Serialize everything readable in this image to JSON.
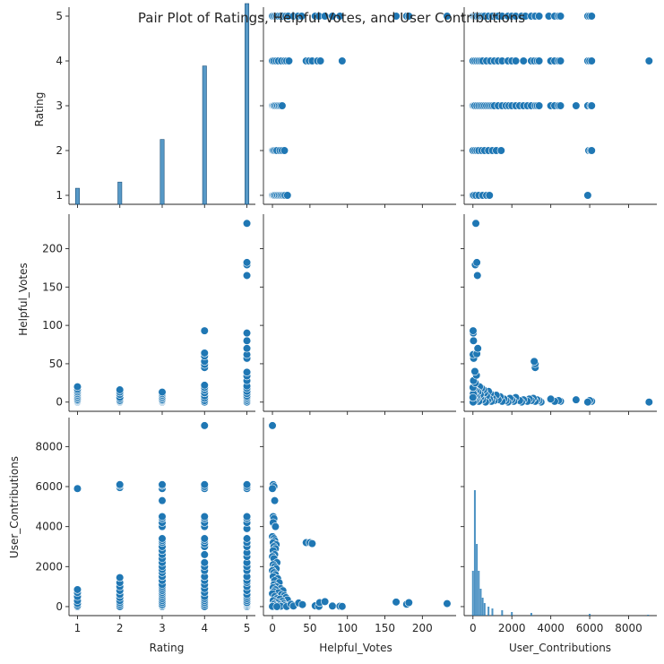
{
  "chart_data": {
    "type": "scatter",
    "title": "Pair Plot of Ratings, Helpful Votes, and User Contributions",
    "variables": [
      "Rating",
      "Helpful_Votes",
      "User_Contributions"
    ],
    "grid": false,
    "colors": {
      "marker": "#1f77b4",
      "marker_edge": "#ffffff",
      "bar": "#1f77b4"
    },
    "axes": {
      "Rating": {
        "range": [
          0.8,
          5.2
        ],
        "ticks": [
          1,
          2,
          3,
          4,
          5
        ],
        "tick_labels": [
          "1",
          "2",
          "3",
          "4",
          "5"
        ]
      },
      "Helpful_Votes": {
        "range": [
          -12,
          245
        ],
        "ticks": [
          0,
          50,
          100,
          150,
          200
        ],
        "tick_labels": [
          "0",
          "50",
          "100",
          "150",
          "200"
        ]
      },
      "User_Contributions": {
        "range": [
          -450,
          9450
        ],
        "ticks": [
          0,
          2000,
          4000,
          6000,
          8000
        ],
        "tick_labels": [
          "0",
          "2000",
          "4000",
          "6000",
          "8000"
        ]
      }
    },
    "rating_histogram": {
      "bins": [
        1,
        2,
        3,
        4,
        5
      ],
      "relative_heights": [
        0.26,
        0.36,
        1.05,
        2.24,
        3.25
      ]
    },
    "contributions_histogram": {
      "x": [
        0,
        100,
        200,
        300,
        400,
        500,
        600,
        800,
        1000,
        1500,
        2000,
        3000,
        6000,
        9000
      ],
      "relative_heights": [
        0.25,
        0.7,
        0.4,
        0.25,
        0.15,
        0.1,
        0.07,
        0.05,
        0.04,
        0.03,
        0.02,
        0.015,
        0.01,
        0.005
      ]
    },
    "rating_vs_helpful_votes": {
      "1": [
        0,
        1,
        2,
        3,
        5,
        7,
        9,
        11,
        13,
        15,
        17,
        20
      ],
      "2": [
        0,
        1,
        2,
        4,
        6,
        10,
        13,
        16
      ],
      "3": [
        0,
        1,
        2,
        3,
        5,
        7,
        9,
        11,
        13
      ],
      "4": [
        0,
        2,
        5,
        8,
        12,
        16,
        19,
        22,
        45,
        49,
        53,
        60,
        64,
        93
      ],
      "5": [
        0,
        2,
        4,
        6,
        8,
        11,
        14,
        18,
        21,
        28,
        34,
        39,
        57,
        62,
        70,
        80,
        90,
        165,
        179,
        182,
        233
      ]
    },
    "rating_vs_user_contributions": {
      "1": [
        0,
        50,
        150,
        300,
        500,
        700,
        850,
        5900
      ],
      "2": [
        0,
        100,
        200,
        300,
        450,
        600,
        800,
        1000,
        1200,
        1450,
        5950,
        6050,
        6100
      ],
      "3": [
        0,
        50,
        100,
        200,
        300,
        400,
        500,
        600,
        700,
        800,
        900,
        1000,
        1100,
        1300,
        1500,
        1700,
        1850,
        2000,
        2200,
        2400,
        2600,
        2800,
        3000,
        3200,
        3300,
        3400,
        4000,
        4200,
        4400,
        4500,
        5300,
        5900,
        6050,
        6100
      ],
      "4": [
        0,
        100,
        200,
        300,
        400,
        500,
        700,
        900,
        1100,
        1300,
        1500,
        1800,
        2000,
        2200,
        2600,
        3000,
        3150,
        3300,
        3400,
        4000,
        4200,
        4400,
        4500,
        5900,
        6000,
        6100,
        9050
      ],
      "5": [
        0,
        50,
        100,
        150,
        200,
        300,
        400,
        500,
        600,
        800,
        1000,
        1200,
        1300,
        1500,
        1800,
        2000,
        2200,
        2500,
        2700,
        3000,
        3200,
        3400,
        3900,
        4200,
        4400,
        4500,
        5900,
        6000,
        6100
      ]
    },
    "helpful_votes_vs_user_contributions": [
      [
        0,
        9050
      ],
      [
        1,
        6100
      ],
      [
        2,
        6000
      ],
      [
        0,
        5900
      ],
      [
        3,
        5300
      ],
      [
        1,
        4500
      ],
      [
        2,
        4400
      ],
      [
        1,
        4200
      ],
      [
        4,
        4000
      ],
      [
        0,
        3500
      ],
      [
        2,
        3400
      ],
      [
        3,
        3300
      ],
      [
        1,
        3200
      ],
      [
        5,
        3100
      ],
      [
        2,
        3000
      ],
      [
        4,
        2900
      ],
      [
        1,
        2800
      ],
      [
        3,
        2600
      ],
      [
        0,
        2500
      ],
      [
        2,
        2400
      ],
      [
        6,
        2200
      ],
      [
        1,
        2100
      ],
      [
        3,
        2000
      ],
      [
        5,
        1900
      ],
      [
        0,
        1800
      ],
      [
        2,
        1700
      ],
      [
        4,
        1600
      ],
      [
        1,
        1500
      ],
      [
        7,
        1400
      ],
      [
        3,
        1300
      ],
      [
        9,
        1200
      ],
      [
        2,
        1100
      ],
      [
        5,
        1000
      ],
      [
        1,
        950
      ],
      [
        11,
        900
      ],
      [
        4,
        850
      ],
      [
        14,
        800
      ],
      [
        2,
        750
      ],
      [
        8,
        700
      ],
      [
        0,
        650
      ],
      [
        12,
        600
      ],
      [
        16,
        550
      ],
      [
        3,
        500
      ],
      [
        18,
        450
      ],
      [
        6,
        400
      ],
      [
        10,
        380
      ],
      [
        20,
        340
      ],
      [
        1,
        300
      ],
      [
        13,
        260
      ],
      [
        5,
        220
      ],
      [
        7,
        180
      ],
      [
        15,
        150
      ],
      [
        2,
        120
      ],
      [
        9,
        90
      ],
      [
        17,
        60
      ],
      [
        4,
        40
      ],
      [
        11,
        20
      ],
      [
        0,
        10
      ],
      [
        19,
        5
      ],
      [
        6,
        0
      ],
      [
        25,
        120
      ],
      [
        28,
        30
      ],
      [
        35,
        180
      ],
      [
        40,
        100
      ],
      [
        45,
        3200
      ],
      [
        50,
        3200
      ],
      [
        53,
        3150
      ],
      [
        57,
        40
      ],
      [
        62,
        10
      ],
      [
        63,
        200
      ],
      [
        70,
        250
      ],
      [
        80,
        30
      ],
      [
        90,
        20
      ],
      [
        93,
        10
      ],
      [
        165,
        230
      ],
      [
        179,
        120
      ],
      [
        182,
        200
      ],
      [
        233,
        150
      ]
    ]
  }
}
